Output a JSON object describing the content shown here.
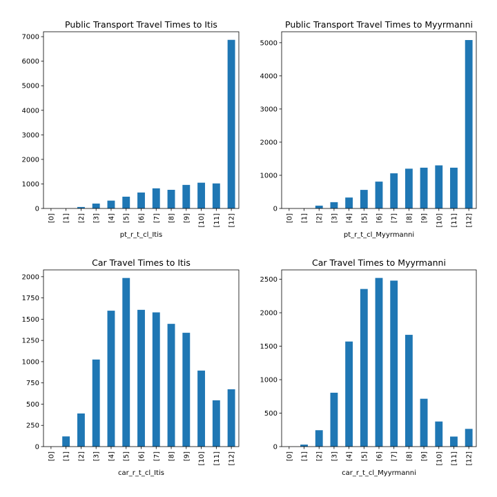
{
  "colors": {
    "bar": "#1f77b4",
    "axis": "#000000",
    "background": "#ffffff"
  },
  "chart_data": [
    {
      "type": "bar",
      "title": "Public Transport Travel Times to Itis",
      "xlabel": "pt_r_t_cl_Itis",
      "ylabel": "",
      "categories": [
        "[0]",
        "[1]",
        "[2]",
        "[3]",
        "[4]",
        "[5]",
        "[6]",
        "[7]",
        "[8]",
        "[9]",
        "[10]",
        "[11]",
        "[12]"
      ],
      "values": [
        0,
        0,
        60,
        200,
        320,
        480,
        650,
        820,
        760,
        960,
        1050,
        1020,
        6870
      ],
      "ylim": [
        0,
        7200
      ],
      "yticks": [
        0,
        1000,
        2000,
        3000,
        4000,
        5000,
        6000,
        7000
      ],
      "ytick_labels": [
        "0",
        "1000",
        "2000",
        "3000",
        "4000",
        "5000",
        "6000",
        "7000"
      ],
      "grid": false,
      "legend": "none"
    },
    {
      "type": "bar",
      "title": "Public Transport Travel Times to Myyrmanni",
      "xlabel": "pt_r_t_cl_Myyrmanni",
      "ylabel": "",
      "categories": [
        "[0]",
        "[1]",
        "[2]",
        "[3]",
        "[4]",
        "[5]",
        "[6]",
        "[7]",
        "[8]",
        "[9]",
        "[10]",
        "[11]",
        "[12]"
      ],
      "values": [
        0,
        0,
        85,
        190,
        330,
        560,
        810,
        1060,
        1200,
        1230,
        1300,
        1230,
        5080
      ],
      "ylim": [
        0,
        5330
      ],
      "yticks": [
        0,
        1000,
        2000,
        3000,
        4000,
        5000
      ],
      "ytick_labels": [
        "0",
        "1000",
        "2000",
        "3000",
        "4000",
        "5000"
      ],
      "grid": false,
      "legend": "none"
    },
    {
      "type": "bar",
      "title": "Car Travel Times to Itis",
      "xlabel": "car_r_t_cl_Itis",
      "ylabel": "",
      "categories": [
        "[0]",
        "[1]",
        "[2]",
        "[3]",
        "[4]",
        "[5]",
        "[6]",
        "[7]",
        "[8]",
        "[9]",
        "[10]",
        "[11]",
        "[12]"
      ],
      "values": [
        0,
        120,
        390,
        1025,
        1600,
        1985,
        1610,
        1580,
        1445,
        1340,
        895,
        545,
        675
      ],
      "ylim": [
        0,
        2080
      ],
      "yticks": [
        0,
        250,
        500,
        750,
        1000,
        1250,
        1500,
        1750,
        2000
      ],
      "ytick_labels": [
        "0",
        "250",
        "500",
        "750",
        "1000",
        "1250",
        "1500",
        "1750",
        "2000"
      ],
      "grid": false,
      "legend": "none"
    },
    {
      "type": "bar",
      "title": "Car Travel Times to Myyrmanni",
      "xlabel": "car_r_t_cl_Myyrmanni",
      "ylabel": "",
      "categories": [
        "[0]",
        "[1]",
        "[2]",
        "[3]",
        "[4]",
        "[5]",
        "[6]",
        "[7]",
        "[8]",
        "[9]",
        "[10]",
        "[11]",
        "[12]"
      ],
      "values": [
        0,
        30,
        245,
        805,
        1570,
        2355,
        2520,
        2480,
        1670,
        715,
        375,
        150,
        265
      ],
      "ylim": [
        0,
        2640
      ],
      "yticks": [
        0,
        500,
        1000,
        1500,
        2000,
        2500
      ],
      "ytick_labels": [
        "0",
        "500",
        "1000",
        "1500",
        "2000",
        "2500"
      ],
      "grid": false,
      "legend": "none"
    }
  ]
}
